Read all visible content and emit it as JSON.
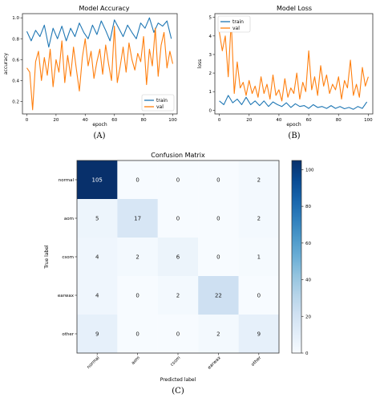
{
  "chart_data": [
    {
      "type": "line",
      "title": "Model Accuracy",
      "xlabel": "epoch",
      "ylabel": "accuracy",
      "xlim": [
        -3,
        103
      ],
      "ylim": [
        0.08,
        1.04
      ],
      "xticks": [
        0,
        20,
        40,
        60,
        80,
        100
      ],
      "yticks": [
        0.2,
        0.4,
        0.6,
        0.8,
        1.0
      ],
      "xtick_labels": [
        "0",
        "20",
        "40",
        "60",
        "80",
        "100"
      ],
      "ytick_labels": [
        "0.2",
        "0.4",
        "0.6",
        "0.8",
        "1.0"
      ],
      "legend": "lower-right",
      "caption": "(A)",
      "series": [
        {
          "name": "train",
          "color": "#1f77b4",
          "x": [
            0,
            3,
            6,
            9,
            12,
            15,
            18,
            21,
            24,
            27,
            30,
            33,
            36,
            39,
            42,
            45,
            48,
            51,
            54,
            57,
            60,
            63,
            66,
            69,
            72,
            75,
            78,
            81,
            84,
            87,
            90,
            93,
            96,
            99
          ],
          "values": [
            0.87,
            0.78,
            0.88,
            0.82,
            0.93,
            0.72,
            0.9,
            0.8,
            0.92,
            0.78,
            0.9,
            0.82,
            0.95,
            0.86,
            0.8,
            0.93,
            0.84,
            0.97,
            0.88,
            0.78,
            0.98,
            0.9,
            0.82,
            0.93,
            0.86,
            0.8,
            0.95,
            0.9,
            1.0,
            0.86,
            0.95,
            0.92,
            0.97,
            0.8
          ]
        },
        {
          "name": "val",
          "color": "#ff7f0e",
          "x": [
            0,
            2,
            4,
            6,
            8,
            10,
            12,
            14,
            16,
            18,
            20,
            22,
            24,
            26,
            28,
            30,
            32,
            34,
            36,
            38,
            40,
            42,
            44,
            46,
            48,
            50,
            52,
            54,
            56,
            58,
            60,
            62,
            64,
            66,
            68,
            70,
            72,
            74,
            76,
            78,
            80,
            82,
            84,
            86,
            88,
            90,
            92,
            94,
            96,
            98,
            100
          ],
          "values": [
            0.52,
            0.48,
            0.12,
            0.58,
            0.68,
            0.4,
            0.62,
            0.45,
            0.7,
            0.34,
            0.6,
            0.48,
            0.78,
            0.38,
            0.64,
            0.44,
            0.72,
            0.5,
            0.3,
            0.62,
            0.8,
            0.54,
            0.68,
            0.42,
            0.58,
            0.7,
            0.46,
            0.74,
            0.56,
            0.4,
            0.92,
            0.38,
            0.54,
            0.72,
            0.48,
            0.76,
            0.6,
            0.5,
            0.66,
            0.58,
            0.82,
            0.36,
            0.7,
            0.54,
            0.9,
            0.44,
            0.74,
            0.86,
            0.52,
            0.68,
            0.56
          ]
        }
      ]
    },
    {
      "type": "line",
      "title": "Model Loss",
      "xlabel": "epoch",
      "ylabel": "loss",
      "xlim": [
        -3,
        103
      ],
      "ylim": [
        -0.2,
        5.2
      ],
      "xticks": [
        0,
        20,
        40,
        60,
        80,
        100
      ],
      "yticks": [
        0,
        1,
        2,
        3,
        4,
        5
      ],
      "xtick_labels": [
        "0",
        "20",
        "40",
        "60",
        "80",
        "100"
      ],
      "ytick_labels": [
        "0",
        "1",
        "2",
        "3",
        "4",
        "5"
      ],
      "legend": "top-left",
      "caption": "(B)",
      "series": [
        {
          "name": "train",
          "color": "#1f77b4",
          "x": [
            0,
            3,
            6,
            9,
            12,
            15,
            18,
            21,
            24,
            27,
            30,
            33,
            36,
            39,
            42,
            45,
            48,
            51,
            54,
            57,
            60,
            63,
            66,
            69,
            72,
            75,
            78,
            81,
            84,
            87,
            90,
            93,
            96,
            99
          ],
          "values": [
            0.5,
            0.3,
            0.8,
            0.4,
            0.6,
            0.3,
            0.7,
            0.3,
            0.5,
            0.25,
            0.5,
            0.2,
            0.45,
            0.3,
            0.2,
            0.4,
            0.15,
            0.35,
            0.2,
            0.25,
            0.1,
            0.3,
            0.15,
            0.2,
            0.1,
            0.25,
            0.1,
            0.2,
            0.08,
            0.15,
            0.05,
            0.2,
            0.1,
            0.45
          ]
        },
        {
          "name": "val",
          "color": "#ff7f0e",
          "x": [
            0,
            2,
            4,
            6,
            8,
            10,
            12,
            14,
            16,
            18,
            20,
            22,
            24,
            26,
            28,
            30,
            32,
            34,
            36,
            38,
            40,
            42,
            44,
            46,
            48,
            50,
            52,
            54,
            56,
            58,
            60,
            62,
            64,
            66,
            68,
            70,
            72,
            74,
            76,
            78,
            80,
            82,
            84,
            86,
            88,
            90,
            92,
            94,
            96,
            98,
            100
          ],
          "values": [
            4.2,
            3.2,
            4.0,
            1.8,
            4.8,
            0.9,
            2.6,
            1.2,
            1.5,
            0.8,
            1.6,
            0.9,
            1.3,
            0.7,
            1.8,
            0.9,
            1.4,
            0.6,
            1.9,
            0.8,
            1.1,
            0.5,
            1.7,
            0.7,
            1.2,
            0.9,
            2.0,
            0.6,
            1.5,
            1.0,
            3.2,
            1.1,
            1.8,
            0.8,
            2.4,
            1.3,
            1.9,
            0.9,
            1.4,
            1.1,
            1.8,
            0.6,
            1.6,
            1.2,
            2.7,
            0.8,
            1.4,
            0.7,
            2.3,
            1.3,
            1.8
          ]
        }
      ]
    },
    {
      "type": "heatmap",
      "title": "Confusion Matrix",
      "xlabel": "Predicted label",
      "ylabel": "True label",
      "caption": "(C)",
      "x_categories": [
        "normal",
        "aom",
        "csom",
        "earwax",
        "other"
      ],
      "y_categories": [
        "normal",
        "aom",
        "csom",
        "earwax",
        "other"
      ],
      "values": [
        [
          105,
          0,
          0,
          0,
          2
        ],
        [
          5,
          17,
          0,
          0,
          2
        ],
        [
          4,
          2,
          6,
          0,
          1
        ],
        [
          4,
          0,
          2,
          22,
          0
        ],
        [
          9,
          0,
          0,
          2,
          9
        ]
      ],
      "colorbar": {
        "min": 0,
        "max": 105,
        "ticks": [
          0,
          20,
          40,
          60,
          80,
          100
        ],
        "tick_labels": [
          "0",
          "20",
          "40",
          "60",
          "80",
          "100"
        ],
        "colormap": "Blues"
      }
    }
  ]
}
